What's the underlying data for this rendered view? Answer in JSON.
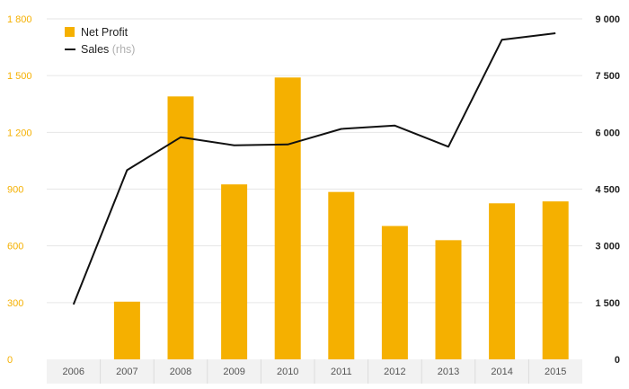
{
  "chart_data": {
    "type": "bar",
    "categories": [
      "2006",
      "2007",
      "2008",
      "2009",
      "2010",
      "2011",
      "2012",
      "2013",
      "2014",
      "2015"
    ],
    "series": [
      {
        "name": "Net Profit",
        "type": "bar",
        "axis": "left",
        "color": "#f5b000",
        "values": [
          0,
          305,
          1390,
          925,
          1490,
          885,
          705,
          630,
          825,
          835
        ]
      },
      {
        "name": "Sales",
        "name_note": "(rhs)",
        "type": "line",
        "axis": "right",
        "color": "#111111",
        "values": [
          1450,
          5000,
          5870,
          5660,
          5680,
          6090,
          6180,
          5620,
          8450,
          8620
        ]
      }
    ],
    "y_left": {
      "ylim": [
        0,
        1800
      ],
      "ticks": [
        0,
        300,
        600,
        900,
        1200,
        1500,
        1800
      ],
      "tick_labels": [
        "0",
        "300",
        "600",
        "900",
        "1 200",
        "1 500",
        "1 800"
      ],
      "color": "#f5b000"
    },
    "y_right": {
      "ylim": [
        0,
        9000
      ],
      "ticks": [
        0,
        1500,
        3000,
        4500,
        6000,
        7500,
        9000
      ],
      "tick_labels": [
        "0",
        "1 500",
        "3 000",
        "4 500",
        "6 000",
        "7 500",
        "9 000"
      ],
      "color": "#222222"
    },
    "grid": true,
    "legend_position": "top-left",
    "title": "",
    "xlabel": "",
    "ylabel": ""
  }
}
